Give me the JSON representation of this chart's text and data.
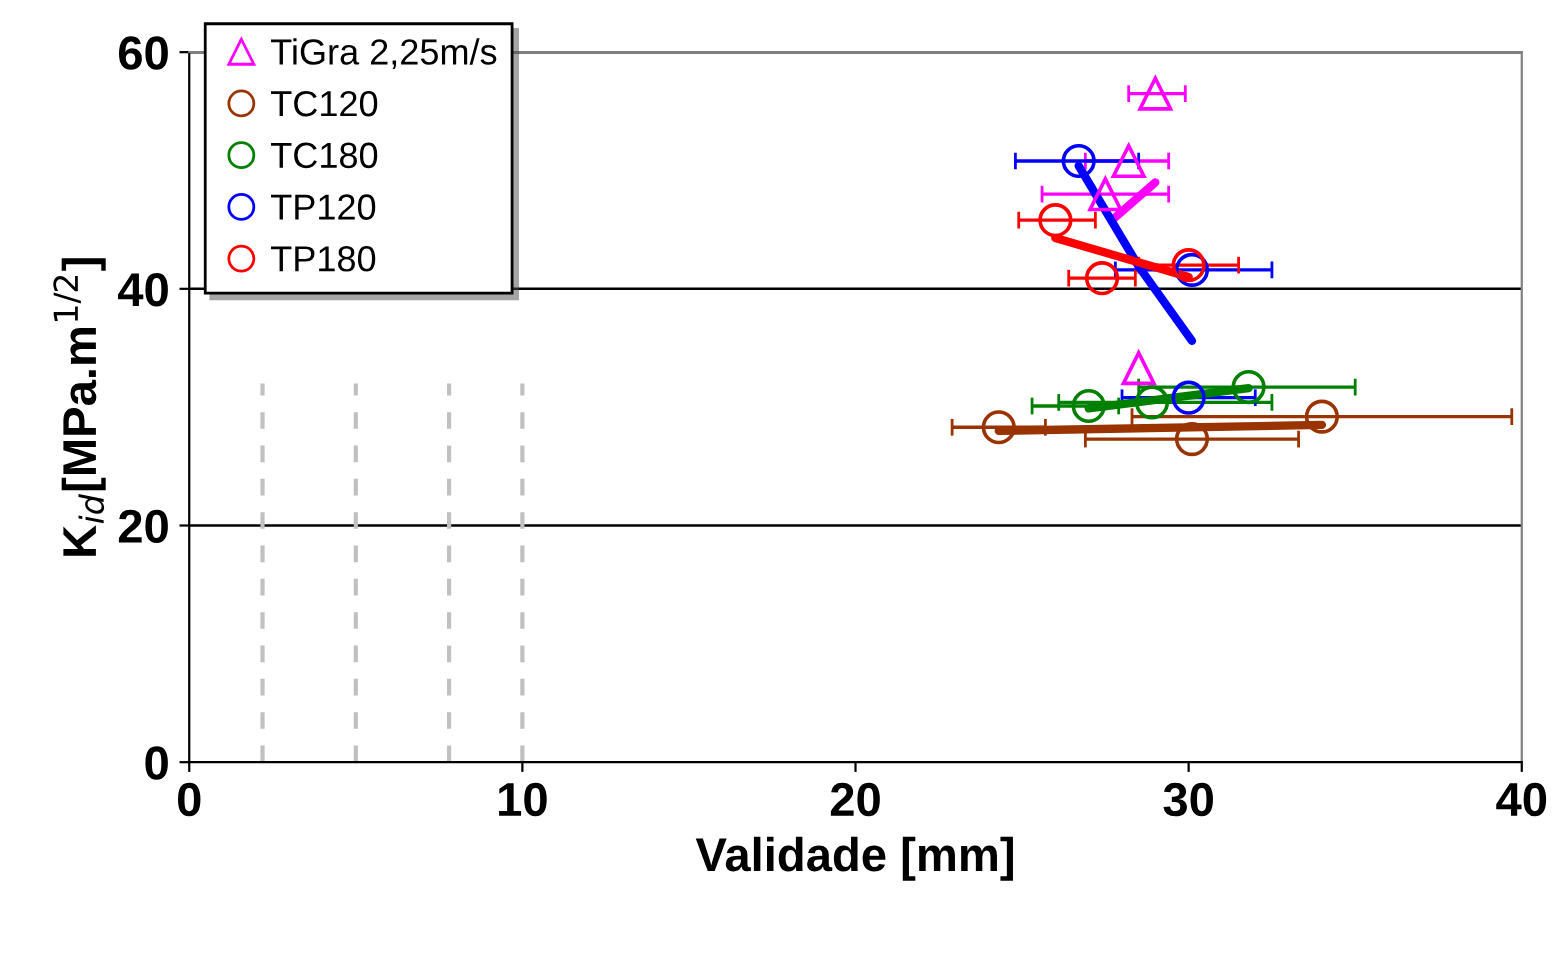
{
  "chart_data": {
    "type": "scatter",
    "xlabel": "Validade [mm]",
    "ylabel": "K$_{id}$[MPa.m$^{1/2}$]",
    "xlim": [
      0,
      40
    ],
    "ylim": [
      0,
      60
    ],
    "xticks": [
      0,
      10,
      20,
      30,
      40
    ],
    "yticks": [
      0,
      20,
      40,
      60
    ],
    "grid": "y",
    "legend": "top left",
    "series": [
      {
        "name": "TiGra 2,25m/s",
        "color": "#ff00ff",
        "marker": "triangle",
        "x": [
          29.0,
          28.2,
          27.5,
          28.5
        ],
        "values": [
          56.5,
          50.8,
          48.0,
          33.3
        ],
        "xerrors": [
          [
            28.2,
            29.9
          ],
          [
            26.9,
            29.4
          ],
          [
            25.6,
            29.4
          ],
          null
        ]
      },
      {
        "name": "TC120",
        "color": "#993300",
        "marker": "circle",
        "x": [
          24.3,
          30.1,
          34.0
        ],
        "values": [
          28.3,
          27.3,
          29.2
        ],
        "xerrors": [
          [
            22.9,
            25.7
          ],
          [
            26.9,
            33.3
          ],
          [
            28.3,
            39.7
          ]
        ]
      },
      {
        "name": "TC180",
        "color": "#008000",
        "marker": "circle",
        "x": [
          27.0,
          28.9,
          31.8
        ],
        "values": [
          30.1,
          30.4,
          31.7
        ],
        "xerrors": [
          [
            25.3,
            27.9
          ],
          [
            26.1,
            32.5
          ],
          [
            28.5,
            35.0
          ]
        ]
      },
      {
        "name": "TP120",
        "color": "#0000ff",
        "marker": "circle",
        "x": [
          26.7,
          30.1,
          30.0
        ],
        "values": [
          50.8,
          41.6,
          30.8
        ],
        "xerrors": [
          [
            24.8,
            28.5
          ],
          [
            27.8,
            32.5
          ],
          [
            28.0,
            32.0
          ]
        ]
      },
      {
        "name": "TP180",
        "color": "#ff0000",
        "marker": "circle",
        "x": [
          26.0,
          30.0,
          27.4
        ],
        "values": [
          45.8,
          42.0,
          40.9
        ],
        "xerrors": [
          [
            24.9,
            27.2
          ],
          [
            28.5,
            31.5
          ],
          [
            26.4,
            28.4
          ]
        ]
      },
      {
        "type": "line",
        "color": "#ff00ff",
        "x": [
          27.7,
          29.0
        ],
        "values": [
          45.8,
          49.0
        ]
      },
      {
        "type": "line",
        "color": "#993300",
        "x": [
          24.3,
          34.0
        ],
        "values": [
          28.0,
          28.5
        ]
      },
      {
        "type": "line",
        "color": "#008000",
        "x": [
          27.0,
          31.8
        ],
        "values": [
          29.9,
          31.6
        ]
      },
      {
        "type": "line",
        "color": "#0000ff",
        "x": [
          26.7,
          28.5,
          30.1
        ],
        "values": [
          50.4,
          41.9,
          35.6
        ]
      },
      {
        "type": "line",
        "color": "#ff0000",
        "x": [
          26.0,
          30.0
        ],
        "values": [
          44.3,
          41.0
        ]
      },
      {
        "type": "line",
        "color": "#c0c0c0",
        "line_style": "dashed",
        "x": [
          2.2,
          2.2
        ],
        "values": [
          0,
          32
        ]
      },
      {
        "type": "line",
        "color": "#c0c0c0",
        "line_style": "dashed",
        "x": [
          5.0,
          5.0
        ],
        "values": [
          0,
          32
        ]
      },
      {
        "type": "line",
        "color": "#c0c0c0",
        "line_style": "dashed",
        "x": [
          7.8,
          7.8
        ],
        "values": [
          0,
          32
        ]
      },
      {
        "type": "line",
        "color": "#c0c0c0",
        "line_style": "dashed",
        "x": [
          10.0,
          10.0
        ],
        "values": [
          0,
          32
        ]
      }
    ]
  }
}
